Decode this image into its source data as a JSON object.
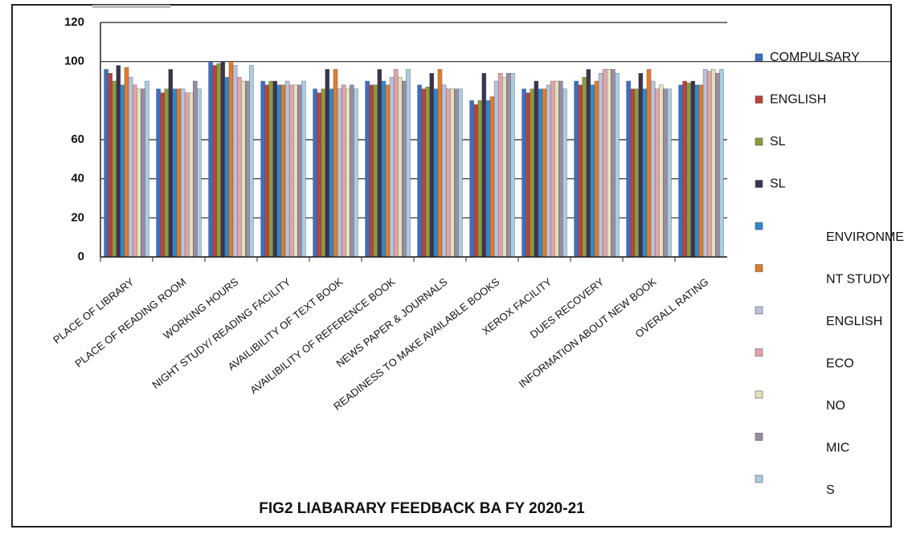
{
  "chart_data": {
    "type": "bar",
    "title": "FIG2 LIABARARY FEEDBACK BA FY 2020-21",
    "categories": [
      "PLACE OF LIBRARY",
      "PLACE OF READING ROOM",
      "WORKING HOURS",
      "NIGHT STUDY/ READING FACILITY",
      "AVAILIBILITY OF TEXT BOOK",
      "AVAILIBILITY OF REFERENCE BOOK",
      "NEWS PAPER & JOURNALS",
      "READINESS TO MAKE AVAILABLE BOOKS",
      "XEROX FACILITY",
      "DUES RECOVERY",
      "INFORMATION ABOUT NEW BOOK",
      "OVERALL RATING"
    ],
    "series": [
      {
        "name": "COMPULSARY",
        "color": "#3b6fc2",
        "values": [
          96,
          86,
          100,
          90,
          86,
          90,
          88,
          80,
          86,
          90,
          90,
          88
        ]
      },
      {
        "name": "ENGLISH",
        "color": "#b8433a",
        "values": [
          94,
          84,
          98,
          88,
          84,
          88,
          86,
          78,
          84,
          88,
          86,
          90
        ]
      },
      {
        "name": "SL",
        "color": "#8c9a3e",
        "values": [
          90,
          86,
          99,
          90,
          86,
          88,
          87,
          80,
          86,
          92,
          86,
          89
        ]
      },
      {
        "name": "SL",
        "color": "#3a3450",
        "values": [
          98,
          96,
          100,
          90,
          96,
          96,
          94,
          94,
          90,
          96,
          94,
          90
        ]
      },
      {
        "name": "ENVIRONME",
        "color": "#2f88cc",
        "values": [
          88,
          86,
          92,
          88,
          86,
          90,
          86,
          80,
          86,
          88,
          86,
          88
        ]
      },
      {
        "name": "NT STUDY",
        "color": "#e07c2c",
        "values": [
          97,
          86,
          100,
          88,
          96,
          88,
          96,
          82,
          86,
          90,
          96,
          88
        ]
      },
      {
        "name": "ENGLISH",
        "color": "#b9c3de",
        "values": [
          92,
          86,
          98,
          90,
          86,
          92,
          88,
          90,
          88,
          94,
          90,
          96
        ]
      },
      {
        "name": "ECO",
        "color": "#e2a3ab",
        "values": [
          88,
          84,
          92,
          88,
          88,
          96,
          86,
          94,
          90,
          96,
          86,
          95
        ]
      },
      {
        "name": "NO",
        "color": "#e2e1ba",
        "values": [
          86,
          84,
          90,
          88,
          86,
          92,
          86,
          92,
          90,
          96,
          88,
          96
        ]
      },
      {
        "name": "MIC",
        "color": "#9a8ca3",
        "values": [
          86,
          90,
          90,
          88,
          88,
          90,
          86,
          94,
          90,
          96,
          86,
          94
        ]
      },
      {
        "name": "S",
        "color": "#a9cde2",
        "values": [
          90,
          86,
          98,
          90,
          86,
          96,
          86,
          94,
          86,
          94,
          86,
          96
        ]
      }
    ],
    "ylim": [
      0,
      120
    ],
    "yticks": [
      0,
      20,
      40,
      60,
      100,
      120
    ],
    "grid": true
  }
}
